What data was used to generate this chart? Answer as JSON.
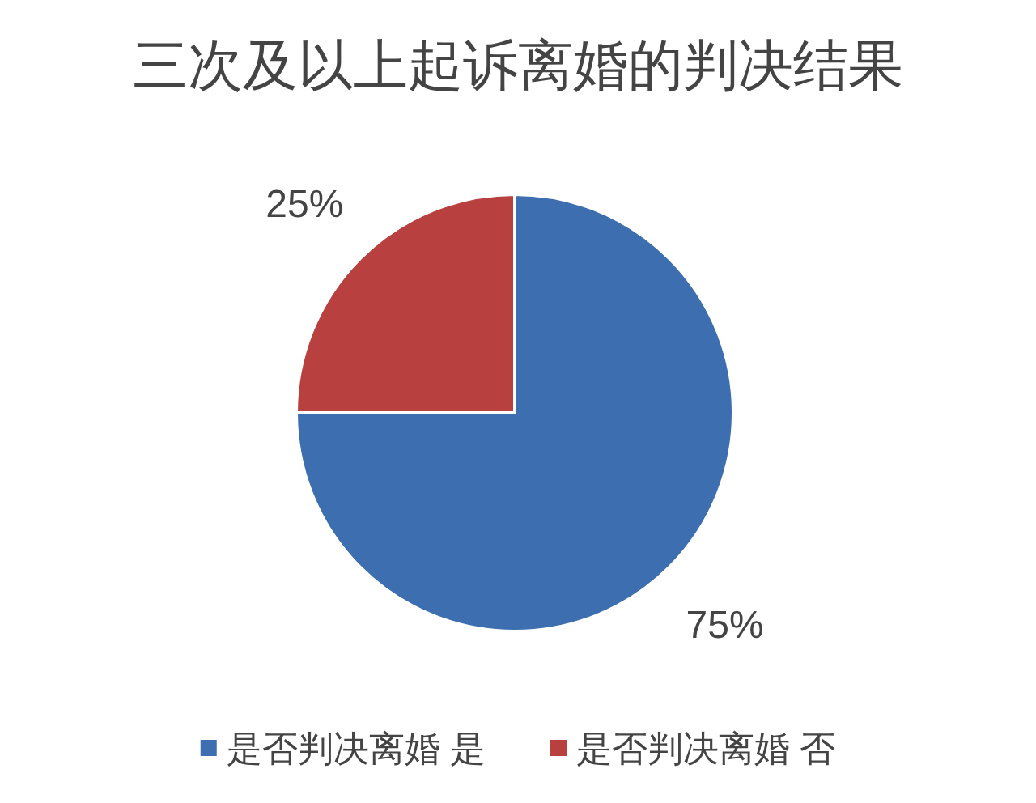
{
  "chart_data": {
    "type": "pie",
    "title": "三次及以上起诉离婚的判决结果",
    "categories": [
      "是否判决离婚 是",
      "是否判决离婚 否"
    ],
    "values": [
      75,
      25
    ],
    "colors": [
      "#3d6eb0",
      "#b8413f"
    ],
    "value_labels": [
      "75%",
      "25%"
    ],
    "legend": "bottom"
  }
}
